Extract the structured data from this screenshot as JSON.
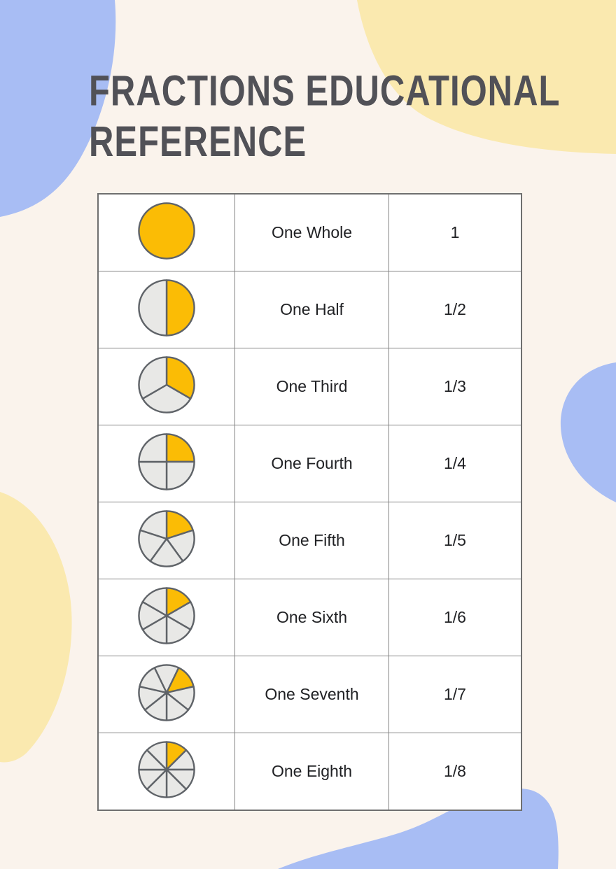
{
  "title": {
    "display": "FRACTIONS EDUCATIONAL REFERENCE",
    "color": "#515157"
  },
  "colors": {
    "background": "#FAF3EC",
    "blob_blue": "#A8BDF4",
    "blob_yellow": "#FAE9AF",
    "pie_filled": "#FBBC05",
    "pie_empty": "#E8E8E6",
    "pie_stroke": "#5F6368",
    "table_border": "#848484",
    "cell_background": "#FFFFFF",
    "text": "#202124"
  },
  "table": {
    "columns": [
      "diagram",
      "name",
      "value"
    ],
    "rows": [
      {
        "name": "One Whole",
        "value": "1",
        "numerator": 1,
        "denominator": 1,
        "start_angle": 0
      },
      {
        "name": "One Half",
        "value": "1/2",
        "numerator": 1,
        "denominator": 2,
        "start_angle": 0
      },
      {
        "name": "One Third",
        "value": "1/3",
        "numerator": 1,
        "denominator": 3,
        "start_angle": 0
      },
      {
        "name": "One Fourth",
        "value": "1/4",
        "numerator": 1,
        "denominator": 4,
        "start_angle": 0
      },
      {
        "name": "One Fifth",
        "value": "1/5",
        "numerator": 1,
        "denominator": 5,
        "start_angle": 0
      },
      {
        "name": "One Sixth",
        "value": "1/6",
        "numerator": 1,
        "denominator": 6,
        "start_angle": 0
      },
      {
        "name": "One Seventh",
        "value": "1/7",
        "numerator": 1,
        "denominator": 7,
        "start_angle": 25.714
      },
      {
        "name": "One Eighth",
        "value": "1/8",
        "numerator": 1,
        "denominator": 8,
        "start_angle": 0
      }
    ]
  }
}
